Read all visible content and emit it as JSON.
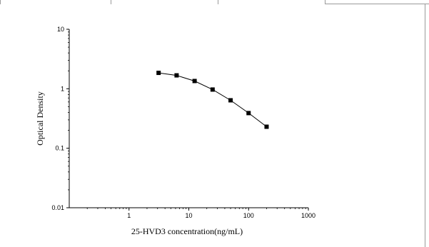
{
  "chart_data": {
    "type": "line",
    "title": "",
    "xlabel": "25-HVD3 concentration(ng/mL)",
    "ylabel": "Optical Density",
    "x_scale": "log",
    "y_scale": "log",
    "xlim": [
      0.1,
      1000
    ],
    "ylim": [
      0.01,
      10
    ],
    "x_tick_labels": [
      "1",
      "10",
      "100",
      "1000"
    ],
    "y_tick_labels": [
      "10",
      "1",
      "0.1",
      "0.01"
    ],
    "x_ticks": [
      1,
      10,
      100,
      1000
    ],
    "y_ticks": [
      10,
      1,
      0.1,
      0.01
    ],
    "grid": false,
    "legend": "none",
    "marker": "square",
    "line_color": "#000000",
    "series": [
      {
        "x": [
          3.125,
          6.25,
          12.5,
          25,
          50,
          100,
          200
        ],
        "y": [
          1.85,
          1.68,
          1.35,
          0.97,
          0.64,
          0.39,
          0.23
        ]
      }
    ]
  }
}
